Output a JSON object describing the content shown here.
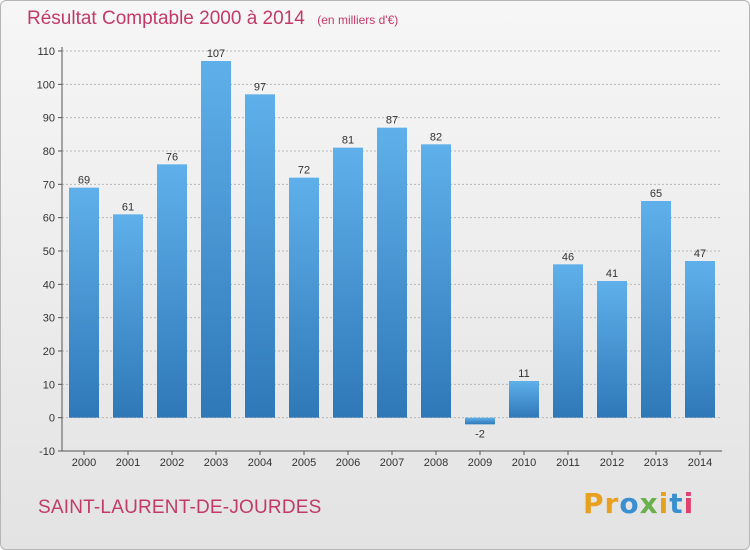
{
  "chart_data": {
    "type": "bar",
    "title": "Résultat Comptable 2000 à 2014",
    "unit": "(en milliers d'€)",
    "categories": [
      "2000",
      "2001",
      "2002",
      "2003",
      "2004",
      "2005",
      "2006",
      "2007",
      "2008",
      "2009",
      "2010",
      "2011",
      "2012",
      "2013",
      "2014"
    ],
    "values": [
      69,
      61,
      76,
      107,
      97,
      72,
      81,
      87,
      82,
      -2,
      11,
      46,
      41,
      65,
      47
    ],
    "yticks": [
      -10,
      0,
      10,
      20,
      30,
      40,
      50,
      60,
      70,
      80,
      90,
      100,
      110
    ],
    "ylim": [
      -10,
      110
    ],
    "xlabel": "",
    "ylabel": "",
    "grid": "horizontal dashed",
    "bar_color": "#4a9fdc",
    "bar_color_dark": "#2f78b8"
  },
  "footer": {
    "commune": "SAINT-LAURENT-DE-JOURDES",
    "brand": "Proxiti"
  },
  "colors": {
    "title": "#c23a69",
    "brand_letters": [
      "#e8a020",
      "#e8a020",
      "#3a8fd0",
      "#6ab04c",
      "#e8a020",
      "#3a8fd0",
      "#e04070"
    ]
  }
}
